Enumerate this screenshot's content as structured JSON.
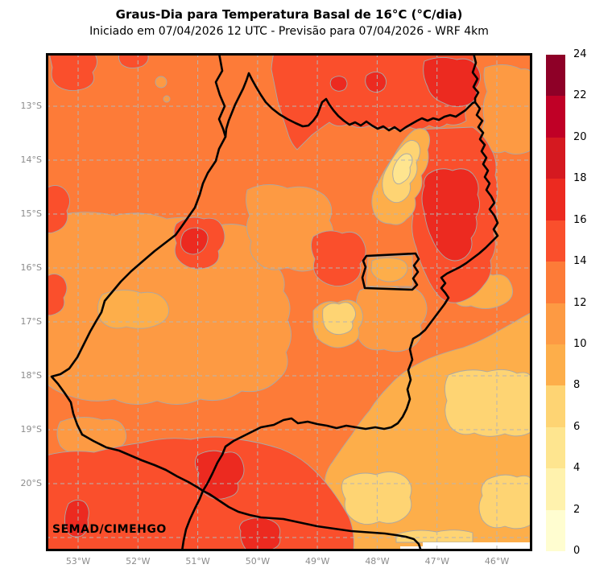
{
  "title": "Graus-Dia para Temperatura Basal de 16°C (°C/dia)",
  "subtitle": "Iniciado em 07/04/2026 12 UTC - Previsão para 07/04/2026 - WRF 4km",
  "watermark": "SEMAD/CIMEHGO",
  "map": {
    "x_ticks": [
      "53°W",
      "52°W",
      "51°W",
      "50°W",
      "49°W",
      "48°W",
      "47°W",
      "46°W"
    ],
    "y_ticks": [
      "13°S",
      "14°S",
      "15°S",
      "16°S",
      "17°S",
      "18°S",
      "19°S",
      "20°S"
    ]
  },
  "colorbar": {
    "ticks": [
      "0",
      "2",
      "4",
      "6",
      "8",
      "10",
      "12",
      "14",
      "16",
      "18",
      "20",
      "22",
      "24"
    ],
    "colors_bottom_to_top": [
      "#fffdd0",
      "#fff2ad",
      "#fee58f",
      "#fed473",
      "#fdae4a",
      "#fd9a43",
      "#fd7b38",
      "#fa4f2c",
      "#ec2a20",
      "#d51920",
      "#c00026",
      "#8e0027"
    ]
  },
  "colors": {
    "border": "#000000",
    "contour_edge": "#a8a8a8",
    "gridline": "#b5b5b5",
    "tick_label": "#8c8c8c"
  }
}
